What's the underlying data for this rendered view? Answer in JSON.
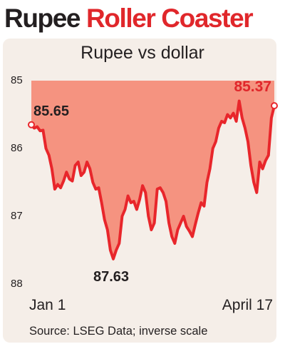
{
  "headline": {
    "part1": "Rupee",
    "part2": "Roller Coaster"
  },
  "chart_data": {
    "type": "area",
    "title": "Rupee vs dollar",
    "source": "Source: LSEG Data; inverse scale",
    "y_scale": "inverse",
    "ylim": [
      85,
      88
    ],
    "y_ticks": [
      "85",
      "86",
      "87",
      "88"
    ],
    "x_tick_labels": [
      "Jan 1",
      "April 17"
    ],
    "colors": {
      "line": "#e8262b",
      "fill": "#f4836d",
      "background": "#f5eee8"
    },
    "series": [
      {
        "values": [
          85.65,
          85.7,
          85.68,
          85.74,
          85.73,
          86.0,
          86.1,
          86.3,
          86.6,
          86.53,
          86.58,
          86.48,
          86.35,
          86.45,
          86.48,
          86.25,
          86.2,
          86.4,
          86.35,
          86.2,
          86.3,
          86.5,
          86.6,
          86.58,
          86.8,
          87.05,
          87.2,
          87.5,
          87.63,
          87.5,
          87.4,
          87.0,
          86.9,
          86.7,
          86.8,
          86.78,
          86.9,
          86.75,
          86.55,
          86.65,
          87.0,
          87.2,
          87.1,
          86.6,
          86.58,
          86.65,
          86.78,
          87.1,
          87.3,
          87.4,
          87.2,
          87.1,
          87.0,
          87.15,
          87.22,
          87.3,
          87.12,
          86.95,
          86.8,
          86.85,
          86.5,
          86.3,
          86.0,
          85.9,
          85.7,
          85.6,
          85.62,
          85.5,
          85.55,
          85.48,
          85.6,
          85.3,
          85.55,
          85.7,
          85.9,
          86.25,
          86.5,
          86.65,
          86.2,
          86.3,
          86.18,
          86.1,
          85.55,
          85.37
        ]
      }
    ],
    "annotations": [
      {
        "text": "85.65",
        "value": 85.65,
        "at": "first"
      },
      {
        "text": "87.63",
        "value": 87.63,
        "at": "min"
      },
      {
        "text": "85.37",
        "value": 85.37,
        "at": "last"
      }
    ]
  }
}
